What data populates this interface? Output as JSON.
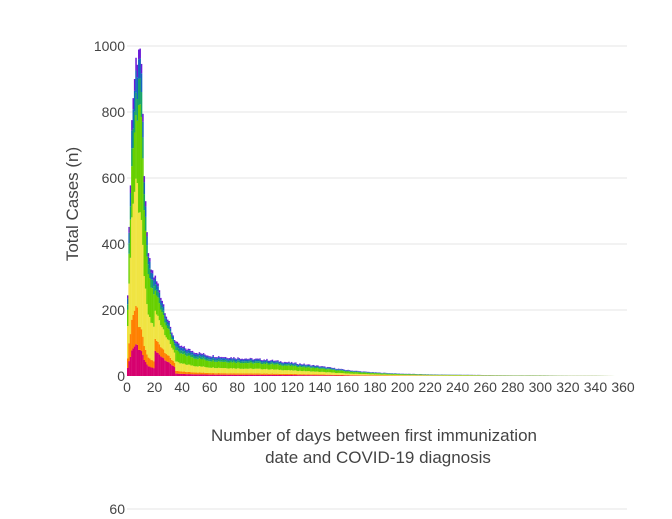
{
  "chart_data": {
    "type": "bar",
    "stacked": true,
    "xlabel_lines": [
      "Number of days between first immunization",
      "date and COVID-19 diagnosis"
    ],
    "ylabel": "Total Cases (n)",
    "xlim": [
      0,
      360
    ],
    "ylim": [
      0,
      1000
    ],
    "x_ticks": [
      0,
      20,
      40,
      60,
      80,
      100,
      120,
      140,
      160,
      180,
      200,
      220,
      240,
      260,
      280,
      300,
      320,
      340,
      360
    ],
    "x_tick_labels": [
      "0",
      "20",
      "40",
      "60",
      "80",
      "100",
      "120",
      "140",
      "160",
      "180",
      "200",
      "220",
      "240",
      "260",
      "280",
      "300",
      "320",
      "340",
      "360"
    ],
    "y_ticks": [
      0,
      200,
      400,
      600,
      800,
      1000
    ],
    "y_tick_labels": [
      "0",
      "200",
      "400",
      "600",
      "800",
      "1000"
    ],
    "bin_width": 1,
    "grid": true,
    "series_colors": [
      "#d6006f",
      "#ff8000",
      "#f0e442",
      "#67d000",
      "#18a36a",
      "#1565c0",
      "#6a1bd8"
    ],
    "layer_fractions": [
      {
        "x_max": 8,
        "values": [
          0.1,
          0.12,
          0.4,
          0.2,
          0.07,
          0.07,
          0.04
        ]
      },
      {
        "x_max": 20,
        "values": [
          0.08,
          0.07,
          0.35,
          0.33,
          0.08,
          0.06,
          0.03
        ]
      },
      {
        "x_max": 35,
        "values": [
          0.25,
          0.12,
          0.28,
          0.2,
          0.06,
          0.06,
          0.03
        ]
      },
      {
        "x_max": 360,
        "values": [
          0.07,
          0.08,
          0.27,
          0.33,
          0.1,
          0.1,
          0.05
        ]
      }
    ],
    "totals": [
      {
        "x": 0,
        "y": 180
      },
      {
        "x": 1,
        "y": 340
      },
      {
        "x": 2,
        "y": 520
      },
      {
        "x": 3,
        "y": 700
      },
      {
        "x": 4,
        "y": 840
      },
      {
        "x": 5,
        "y": 870
      },
      {
        "x": 6,
        "y": 940
      },
      {
        "x": 7,
        "y": 960
      },
      {
        "x": 8,
        "y": 1005
      },
      {
        "x": 9,
        "y": 1015
      },
      {
        "x": 10,
        "y": 960
      },
      {
        "x": 11,
        "y": 830
      },
      {
        "x": 12,
        "y": 700
      },
      {
        "x": 13,
        "y": 560
      },
      {
        "x": 14,
        "y": 440
      },
      {
        "x": 15,
        "y": 400
      },
      {
        "x": 16,
        "y": 350
      },
      {
        "x": 17,
        "y": 330
      },
      {
        "x": 18,
        "y": 320
      },
      {
        "x": 19,
        "y": 310
      },
      {
        "x": 20,
        "y": 300
      },
      {
        "x": 21,
        "y": 290
      },
      {
        "x": 22,
        "y": 280
      },
      {
        "x": 23,
        "y": 270
      },
      {
        "x": 24,
        "y": 255
      },
      {
        "x": 25,
        "y": 240
      },
      {
        "x": 26,
        "y": 225
      },
      {
        "x": 27,
        "y": 210
      },
      {
        "x": 28,
        "y": 195
      },
      {
        "x": 29,
        "y": 180
      },
      {
        "x": 30,
        "y": 165
      },
      {
        "x": 31,
        "y": 150
      },
      {
        "x": 32,
        "y": 140
      },
      {
        "x": 33,
        "y": 130
      },
      {
        "x": 34,
        "y": 118
      },
      {
        "x": 35,
        "y": 108
      },
      {
        "x": 36,
        "y": 100
      },
      {
        "x": 38,
        "y": 92
      },
      {
        "x": 40,
        "y": 88
      },
      {
        "x": 45,
        "y": 80
      },
      {
        "x": 50,
        "y": 72
      },
      {
        "x": 60,
        "y": 62
      },
      {
        "x": 70,
        "y": 58
      },
      {
        "x": 80,
        "y": 55
      },
      {
        "x": 90,
        "y": 52
      },
      {
        "x": 100,
        "y": 50
      },
      {
        "x": 110,
        "y": 45
      },
      {
        "x": 120,
        "y": 40
      },
      {
        "x": 130,
        "y": 35
      },
      {
        "x": 140,
        "y": 30
      },
      {
        "x": 150,
        "y": 24
      },
      {
        "x": 160,
        "y": 18
      },
      {
        "x": 170,
        "y": 14
      },
      {
        "x": 180,
        "y": 11
      },
      {
        "x": 190,
        "y": 9
      },
      {
        "x": 200,
        "y": 7
      },
      {
        "x": 220,
        "y": 5
      },
      {
        "x": 240,
        "y": 4
      },
      {
        "x": 260,
        "y": 3
      },
      {
        "x": 280,
        "y": 2
      },
      {
        "x": 300,
        "y": 2
      },
      {
        "x": 320,
        "y": 1
      },
      {
        "x": 340,
        "y": 1
      },
      {
        "x": 355,
        "y": 0
      }
    ]
  },
  "second_chart": {
    "visible_y_tick_label": "60"
  }
}
